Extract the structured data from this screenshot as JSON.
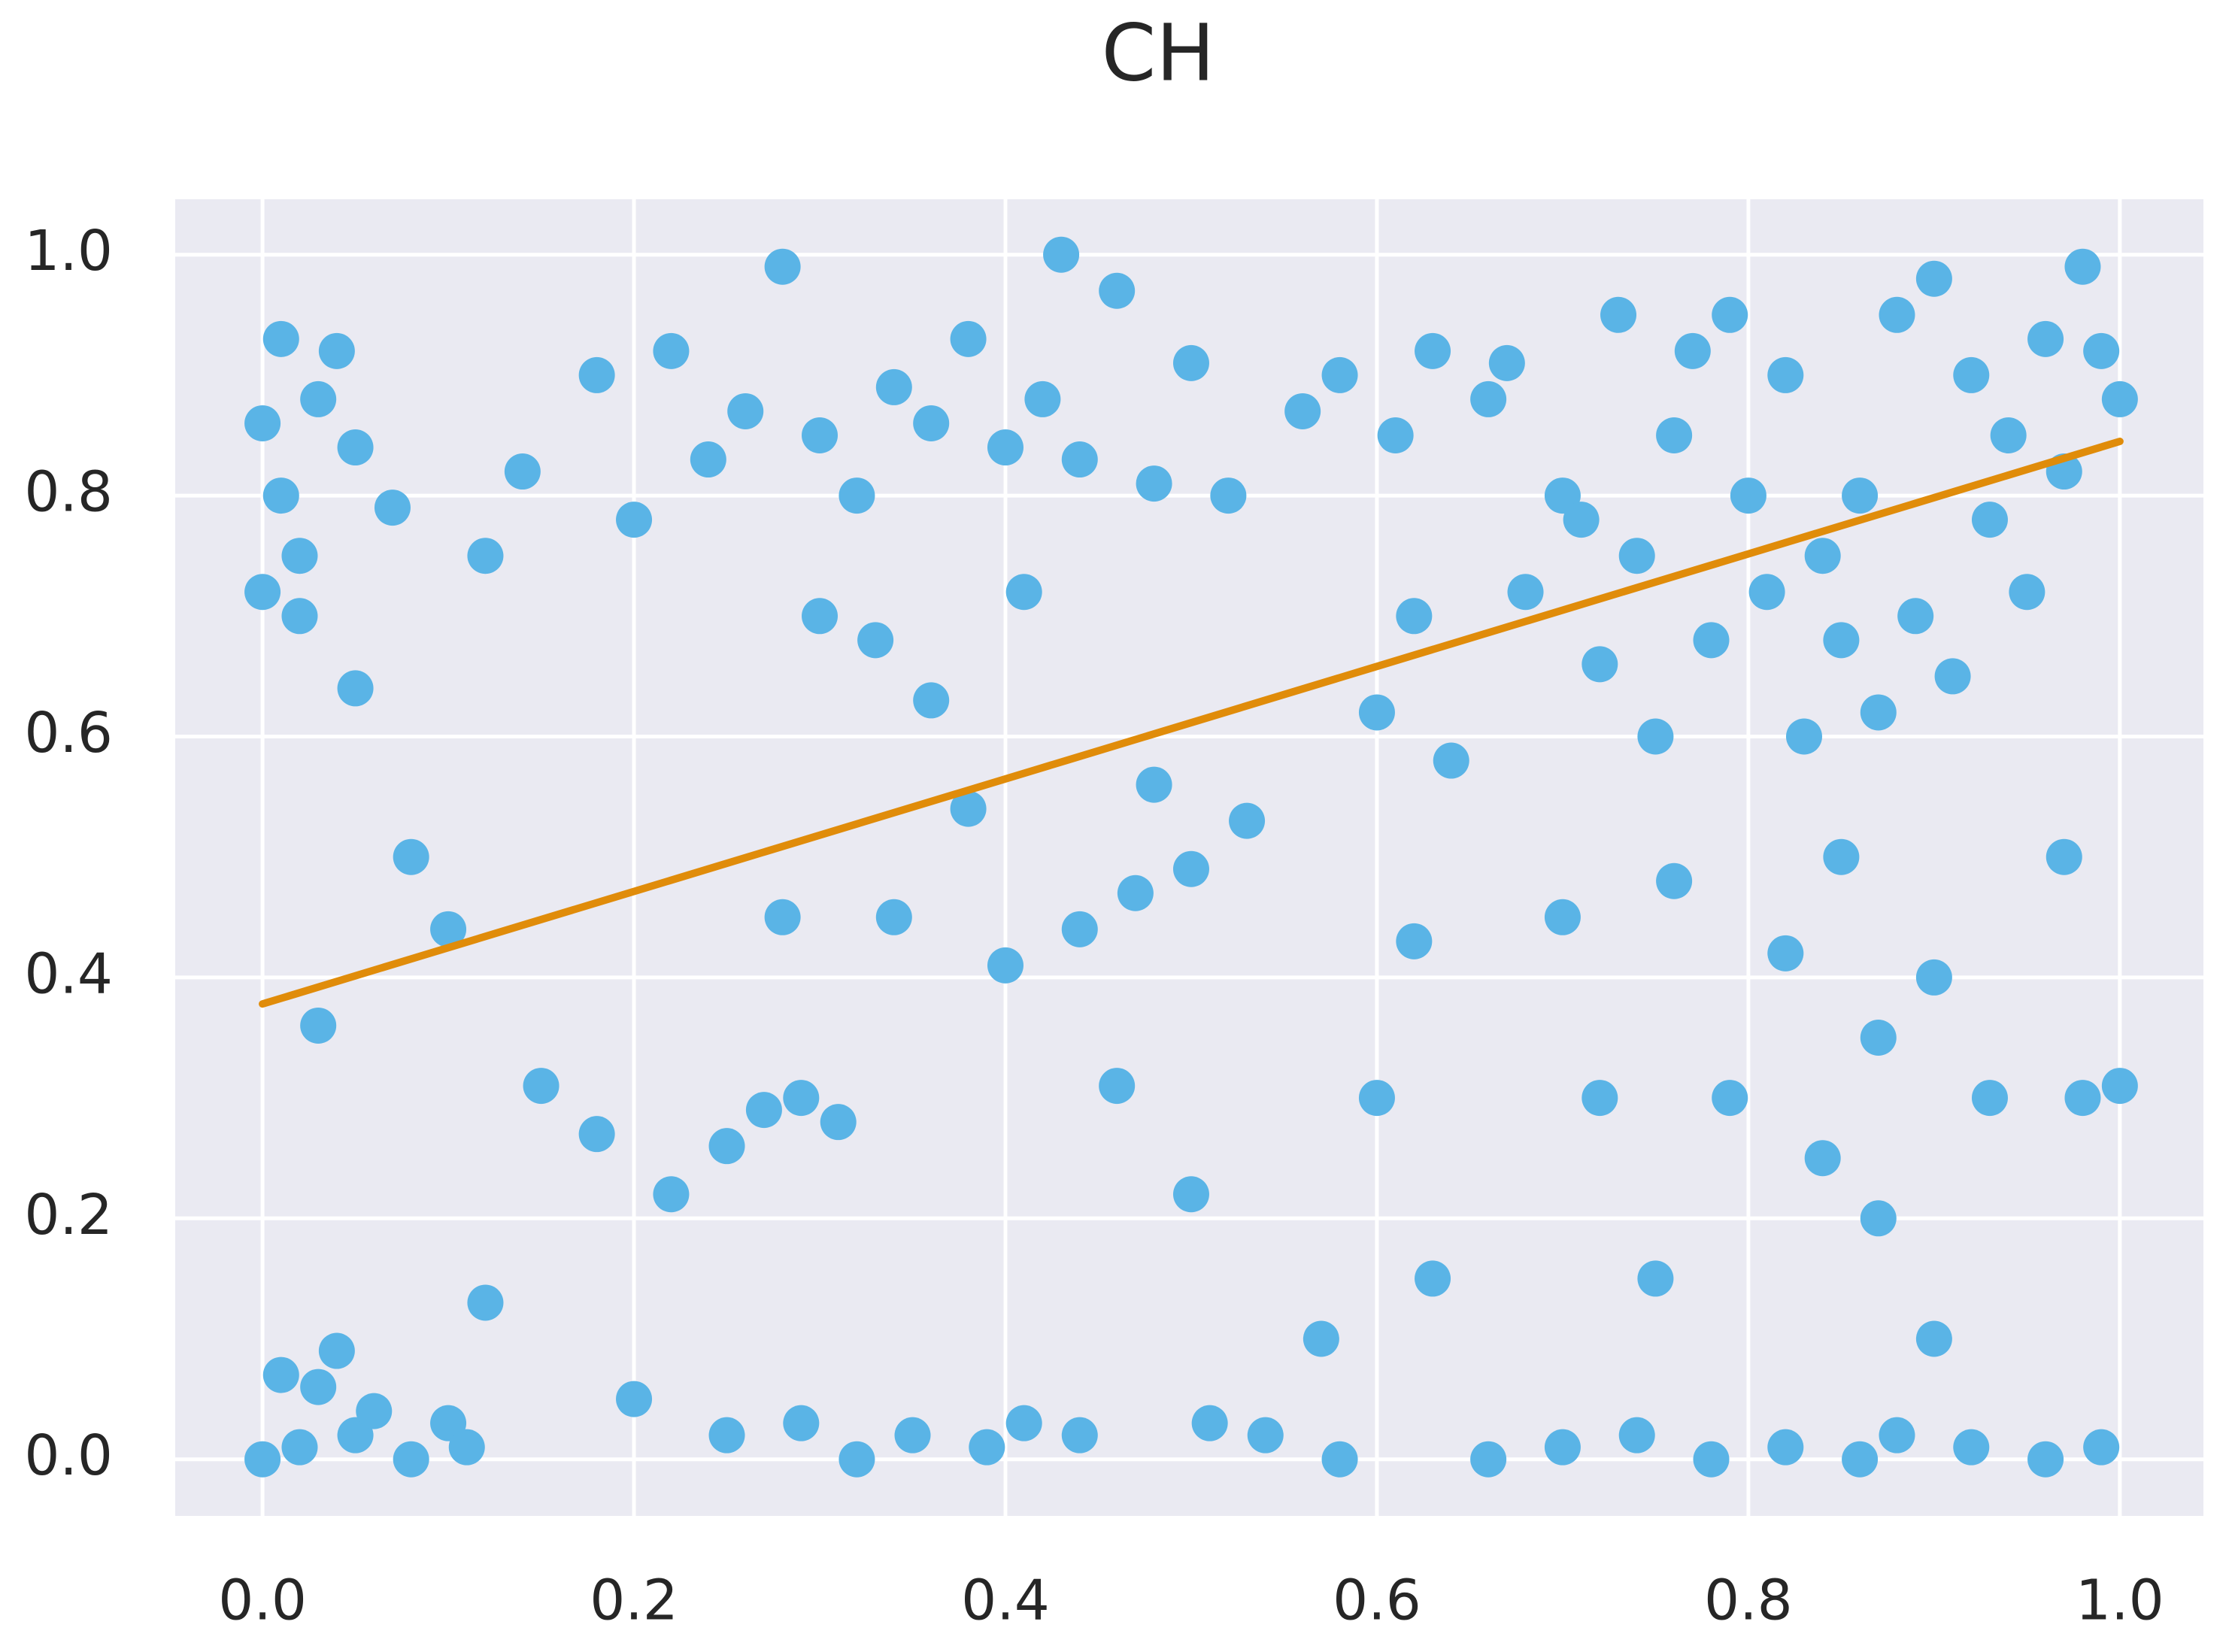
{
  "chart_data": {
    "type": "scatter",
    "title": "CH",
    "points": {
      "color": "#5ab4e6",
      "x": [
        0.0,
        0.01,
        0.02,
        0.03,
        0.0,
        0.05,
        0.07,
        0.02,
        0.04,
        0.01,
        0.0,
        0.02,
        0.05,
        0.08,
        0.1,
        0.03,
        0.06,
        0.11,
        0.01,
        0.04,
        0.18,
        0.22,
        0.26,
        0.3,
        0.34,
        0.38,
        0.42,
        0.46,
        0.5,
        0.28,
        0.14,
        0.2,
        0.24,
        0.32,
        0.36,
        0.4,
        0.44,
        0.48,
        0.52,
        0.43,
        0.22,
        0.25,
        0.27,
        0.29,
        0.31,
        0.4,
        0.44,
        0.47,
        0.5,
        0.53,
        0.1,
        0.08,
        0.15,
        0.05,
        0.03,
        0.12,
        0.38,
        0.36,
        0.33,
        0.41,
        0.2,
        0.25,
        0.29,
        0.32,
        0.35,
        0.39,
        0.41,
        0.44,
        0.51,
        0.54,
        0.88,
        0.9,
        0.92,
        0.94,
        0.96,
        0.98,
        1.0,
        0.86,
        0.84,
        0.82,
        0.89,
        0.91,
        0.93,
        0.95,
        0.97,
        0.99,
        0.87,
        0.85,
        0.83,
        0.81,
        0.6,
        0.62,
        0.64,
        0.66,
        0.68,
        0.7,
        0.72,
        0.74,
        0.76,
        0.78,
        0.58,
        0.61,
        0.63,
        0.67,
        0.71,
        0.73,
        0.75,
        0.77,
        0.79,
        0.8,
        0.66,
        0.7,
        0.74,
        0.78,
        0.82,
        0.86,
        0.88,
        0.92,
        0.96,
        0.99,
        0.76,
        0.79,
        0.82,
        0.84,
        0.87,
        0.9,
        0.93,
        0.72,
        0.7,
        0.85,
        0.62,
        0.57,
        0.6,
        0.98,
        0.97,
        1.0,
        0.87,
        0.9,
        0.75,
        0.63,
        0.12,
        0.18,
        0.28,
        0.3,
        0.34,
        0.48,
        0.5,
        0.46,
        0.56,
        0.58
      ],
      "y": [
        0.86,
        0.8,
        0.75,
        0.88,
        0.72,
        0.84,
        0.79,
        0.7,
        0.92,
        0.93,
        0.0,
        0.01,
        0.02,
        0.0,
        0.03,
        0.06,
        0.04,
        0.01,
        0.07,
        0.09,
        0.9,
        0.92,
        0.87,
        0.85,
        0.89,
        0.93,
        0.88,
        0.97,
        0.91,
        0.99,
        0.82,
        0.78,
        0.83,
        0.8,
        0.86,
        0.84,
        0.83,
        0.81,
        0.8,
        1.0,
        0.22,
        0.26,
        0.29,
        0.3,
        0.28,
        0.41,
        0.44,
        0.47,
        0.49,
        0.53,
        0.44,
        0.5,
        0.31,
        0.64,
        0.36,
        0.13,
        0.54,
        0.63,
        0.68,
        0.72,
        0.05,
        0.02,
        0.03,
        0.0,
        0.02,
        0.01,
        0.03,
        0.02,
        0.03,
        0.02,
        0.95,
        0.98,
        0.9,
        0.85,
        0.93,
        0.99,
        0.88,
        0.8,
        0.75,
        0.9,
        0.7,
        0.65,
        0.78,
        0.72,
        0.82,
        0.92,
        0.62,
        0.68,
        0.6,
        0.72,
        0.62,
        0.7,
        0.58,
        0.88,
        0.72,
        0.8,
        0.66,
        0.75,
        0.85,
        0.68,
        0.9,
        0.85,
        0.92,
        0.91,
        0.78,
        0.95,
        0.6,
        0.92,
        0.95,
        0.8,
        0.0,
        0.01,
        0.02,
        0.0,
        0.01,
        0.0,
        0.02,
        0.01,
        0.0,
        0.01,
        0.48,
        0.3,
        0.42,
        0.25,
        0.35,
        0.4,
        0.3,
        0.3,
        0.45,
        0.5,
        0.43,
        0.1,
        0.3,
        0.3,
        0.5,
        0.31,
        0.2,
        0.1,
        0.15,
        0.15,
        0.75,
        0.27,
        0.45,
        0.7,
        0.45,
        0.56,
        0.22,
        0.31,
        0.87,
        0.0
      ]
    },
    "trend_line": {
      "color": "#e08c0a",
      "x": [
        0,
        1
      ],
      "y": [
        0.378,
        0.845
      ]
    },
    "xlim": [
      -0.047,
      1.045
    ],
    "ylim": [
      -0.047,
      1.046
    ],
    "xticks": [
      {
        "value": 0,
        "label": "0.0"
      },
      0.2,
      0.4,
      0.6,
      0.8,
      {
        "value": 1,
        "label": "1.0"
      }
    ],
    "yticks": [
      {
        "value": 0,
        "label": "0.0"
      },
      0.2,
      0.4,
      0.6,
      0.8,
      {
        "value": 1,
        "label": "1.0"
      }
    ],
    "grid": true
  }
}
